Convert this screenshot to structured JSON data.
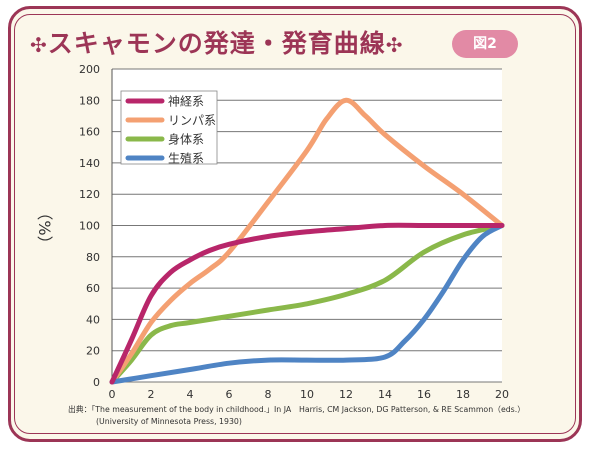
{
  "title": {
    "deco_left": "✣",
    "text": "スキャモンの発達・発育曲線",
    "deco_right": "✣"
  },
  "badge": "図2",
  "chart_data": {
    "type": "line",
    "ylabel": "（%）",
    "xlim": [
      0,
      20
    ],
    "ylim": [
      0,
      200
    ],
    "x_ticks": [
      0,
      2,
      4,
      6,
      8,
      10,
      12,
      14,
      16,
      18,
      20
    ],
    "y_ticks": [
      0,
      20,
      40,
      60,
      80,
      100,
      120,
      140,
      160,
      180,
      200
    ],
    "grid": "horizontal",
    "legend_position": "top-left",
    "series": [
      {
        "name": "神経系",
        "color": "#b8266a",
        "points": [
          [
            0,
            0
          ],
          [
            1,
            27
          ],
          [
            2,
            55
          ],
          [
            3,
            70
          ],
          [
            4,
            78
          ],
          [
            5,
            84
          ],
          [
            6,
            88
          ],
          [
            8,
            93
          ],
          [
            10,
            96
          ],
          [
            12,
            98
          ],
          [
            14,
            100
          ],
          [
            16,
            100
          ],
          [
            18,
            100
          ],
          [
            20,
            100
          ]
        ]
      },
      {
        "name": "リンパ系",
        "color": "#f4a072",
        "points": [
          [
            0,
            0
          ],
          [
            1,
            18
          ],
          [
            2,
            38
          ],
          [
            3,
            52
          ],
          [
            4,
            63
          ],
          [
            5,
            72
          ],
          [
            6,
            83
          ],
          [
            8,
            115
          ],
          [
            10,
            148
          ],
          [
            11,
            168
          ],
          [
            12,
            180
          ],
          [
            13,
            170
          ],
          [
            14,
            158
          ],
          [
            16,
            138
          ],
          [
            18,
            120
          ],
          [
            20,
            100
          ]
        ]
      },
      {
        "name": "身体系",
        "color": "#8ab84a",
        "points": [
          [
            0,
            0
          ],
          [
            1,
            14
          ],
          [
            2,
            30
          ],
          [
            3,
            36
          ],
          [
            4,
            38
          ],
          [
            6,
            42
          ],
          [
            8,
            46
          ],
          [
            10,
            50
          ],
          [
            12,
            56
          ],
          [
            14,
            65
          ],
          [
            16,
            83
          ],
          [
            18,
            94
          ],
          [
            20,
            100
          ]
        ]
      },
      {
        "name": "生殖系",
        "color": "#4f84c4",
        "points": [
          [
            0,
            0
          ],
          [
            2,
            4
          ],
          [
            4,
            8
          ],
          [
            6,
            12
          ],
          [
            8,
            14
          ],
          [
            10,
            14
          ],
          [
            12,
            14
          ],
          [
            14,
            16
          ],
          [
            15,
            26
          ],
          [
            16,
            40
          ],
          [
            17,
            58
          ],
          [
            18,
            78
          ],
          [
            19,
            93
          ],
          [
            20,
            100
          ]
        ]
      }
    ]
  },
  "source": {
    "line1": "出典：「The measurement of the body in childhood.」In JA　Harris, CM Jackson, DG Patterson, & RE Scammon（eds.）",
    "line2": "(University of Minnesota Press, 1930)"
  }
}
